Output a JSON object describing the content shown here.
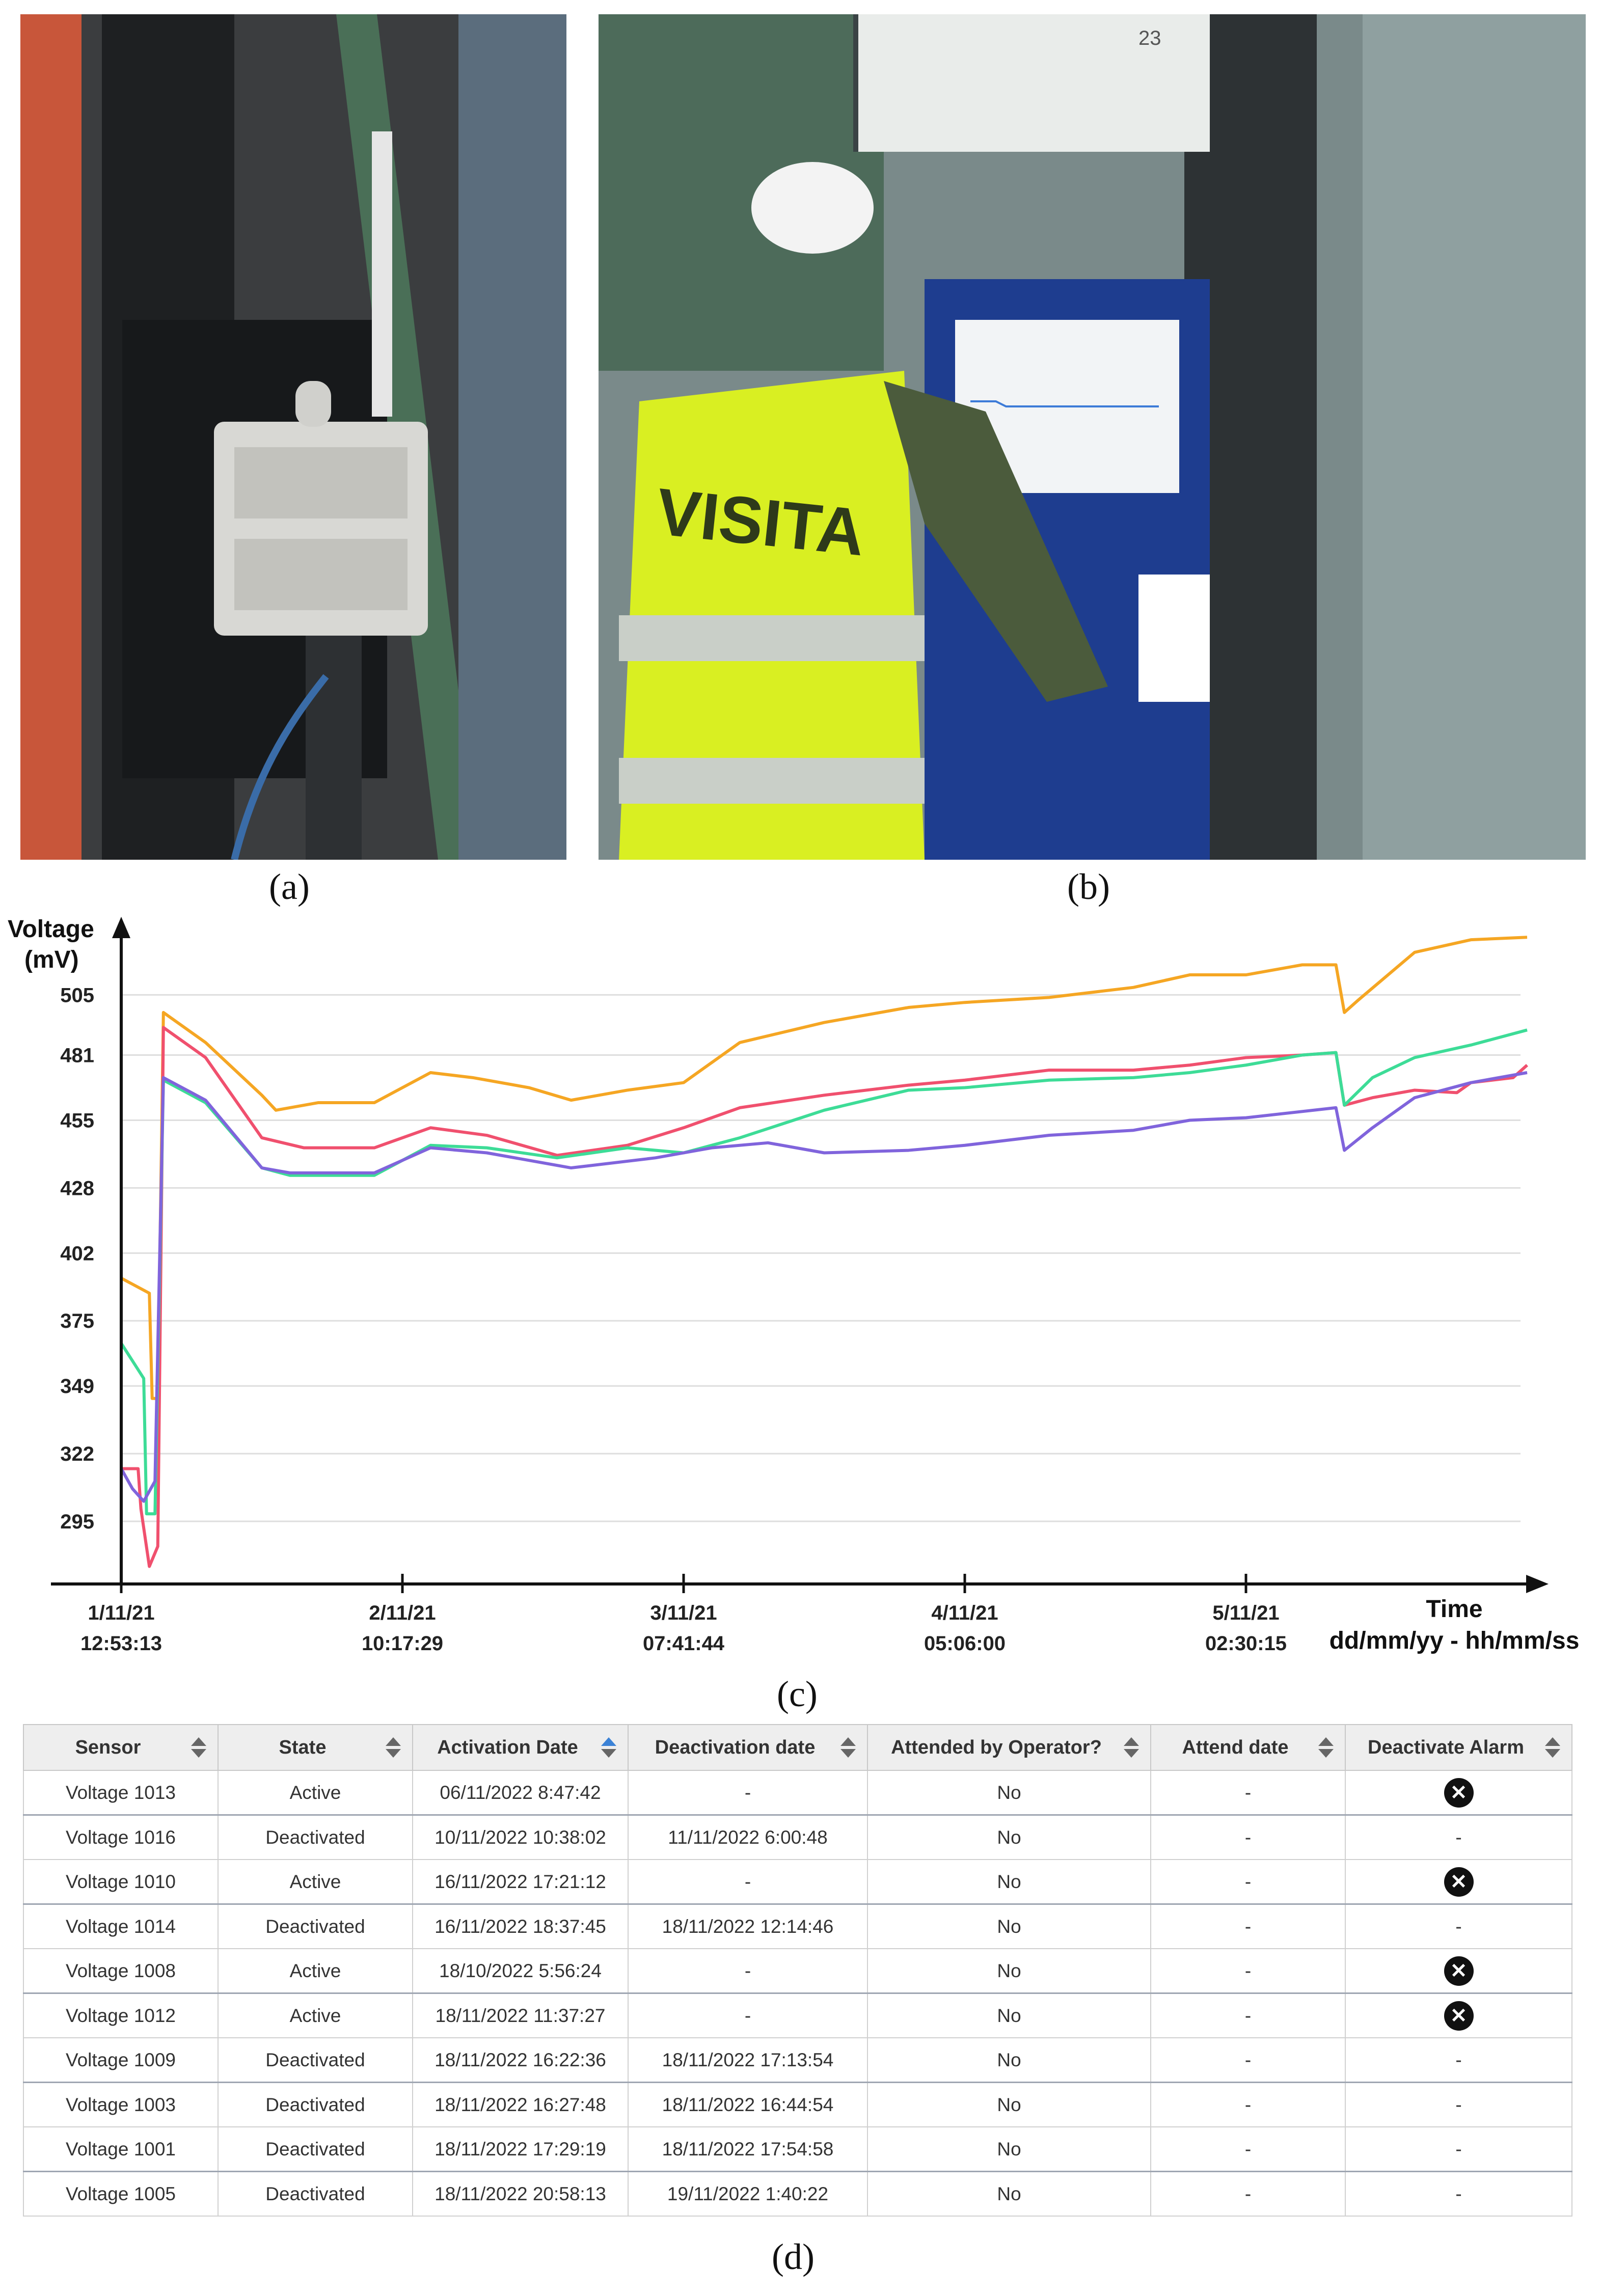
{
  "panels": {
    "a": "(a)",
    "b": "(b)",
    "c": "(c)",
    "d": "(d)"
  },
  "photo_b": {
    "vest_text": "VISITA",
    "ac_display": "23"
  },
  "chart_data": {
    "type": "line",
    "ylabel_line1": "Voltage",
    "ylabel_line2": "(mV)",
    "xlabel_line1": "Time",
    "xlabel_line2": "dd/mm/yy - hh/mm/ss",
    "yticks": [
      295,
      322,
      349,
      375,
      402,
      428,
      455,
      481,
      505
    ],
    "ylim": [
      270,
      525
    ],
    "xlim": [
      0,
      5.06
    ],
    "xticks": [
      {
        "x": 0,
        "date": "1/11/21",
        "time": "12:53:13"
      },
      {
        "x": 1,
        "date": "2/11/21",
        "time": "10:17:29"
      },
      {
        "x": 2,
        "date": "3/11/21",
        "time": "07:41:44"
      },
      {
        "x": 3,
        "date": "4/11/21",
        "time": "05:06:00"
      },
      {
        "x": 4,
        "date": "5/11/21",
        "time": "02:30:15"
      }
    ],
    "grid": true,
    "series": [
      {
        "color": "#f5a623",
        "points": [
          [
            0.0,
            392
          ],
          [
            0.1,
            386
          ],
          [
            0.11,
            344
          ],
          [
            0.13,
            344
          ],
          [
            0.15,
            498
          ],
          [
            0.3,
            486
          ],
          [
            0.5,
            465
          ],
          [
            0.55,
            459
          ],
          [
            0.7,
            462
          ],
          [
            0.9,
            462
          ],
          [
            1.1,
            474
          ],
          [
            1.25,
            472
          ],
          [
            1.45,
            468
          ],
          [
            1.6,
            463
          ],
          [
            1.8,
            467
          ],
          [
            2.0,
            470
          ],
          [
            2.2,
            486
          ],
          [
            2.5,
            494
          ],
          [
            2.8,
            500
          ],
          [
            3.0,
            502
          ],
          [
            3.3,
            504
          ],
          [
            3.6,
            508
          ],
          [
            3.8,
            513
          ],
          [
            4.0,
            513
          ],
          [
            4.2,
            517
          ],
          [
            4.32,
            517
          ],
          [
            4.35,
            498
          ],
          [
            4.4,
            503
          ],
          [
            4.6,
            522
          ],
          [
            4.8,
            527
          ],
          [
            5.0,
            528
          ]
        ]
      },
      {
        "color": "#f0506e",
        "points": [
          [
            0.0,
            316
          ],
          [
            0.06,
            316
          ],
          [
            0.07,
            300
          ],
          [
            0.1,
            277
          ],
          [
            0.13,
            285
          ],
          [
            0.15,
            492
          ],
          [
            0.3,
            480
          ],
          [
            0.5,
            448
          ],
          [
            0.65,
            444
          ],
          [
            0.9,
            444
          ],
          [
            1.1,
            452
          ],
          [
            1.3,
            449
          ],
          [
            1.55,
            441
          ],
          [
            1.8,
            445
          ],
          [
            2.0,
            452
          ],
          [
            2.2,
            460
          ],
          [
            2.5,
            465
          ],
          [
            2.8,
            469
          ],
          [
            3.0,
            471
          ],
          [
            3.3,
            475
          ],
          [
            3.6,
            475
          ],
          [
            3.8,
            477
          ],
          [
            4.0,
            480
          ],
          [
            4.2,
            481
          ],
          [
            4.32,
            482
          ],
          [
            4.35,
            461
          ],
          [
            4.45,
            464
          ],
          [
            4.6,
            467
          ],
          [
            4.75,
            466
          ],
          [
            4.8,
            470
          ],
          [
            4.95,
            472
          ],
          [
            5.0,
            477
          ]
        ]
      },
      {
        "color": "#3ddc97",
        "points": [
          [
            0.0,
            366
          ],
          [
            0.08,
            352
          ],
          [
            0.09,
            298
          ],
          [
            0.12,
            298
          ],
          [
            0.15,
            471
          ],
          [
            0.3,
            462
          ],
          [
            0.5,
            436
          ],
          [
            0.6,
            433
          ],
          [
            0.9,
            433
          ],
          [
            1.1,
            445
          ],
          [
            1.3,
            444
          ],
          [
            1.55,
            440
          ],
          [
            1.8,
            444
          ],
          [
            2.0,
            442
          ],
          [
            2.2,
            448
          ],
          [
            2.5,
            459
          ],
          [
            2.8,
            467
          ],
          [
            3.0,
            468
          ],
          [
            3.3,
            471
          ],
          [
            3.6,
            472
          ],
          [
            3.8,
            474
          ],
          [
            4.0,
            477
          ],
          [
            4.2,
            481
          ],
          [
            4.32,
            482
          ],
          [
            4.35,
            461
          ],
          [
            4.45,
            472
          ],
          [
            4.6,
            480
          ],
          [
            4.8,
            485
          ],
          [
            5.0,
            491
          ]
        ]
      },
      {
        "color": "#8064dc",
        "points": [
          [
            0.0,
            316
          ],
          [
            0.04,
            308
          ],
          [
            0.08,
            303
          ],
          [
            0.12,
            311
          ],
          [
            0.15,
            472
          ],
          [
            0.3,
            463
          ],
          [
            0.5,
            436
          ],
          [
            0.6,
            434
          ],
          [
            0.9,
            434
          ],
          [
            1.1,
            444
          ],
          [
            1.3,
            442
          ],
          [
            1.6,
            436
          ],
          [
            1.9,
            440
          ],
          [
            2.1,
            444
          ],
          [
            2.3,
            446
          ],
          [
            2.5,
            442
          ],
          [
            2.8,
            443
          ],
          [
            3.0,
            445
          ],
          [
            3.3,
            449
          ],
          [
            3.6,
            451
          ],
          [
            3.8,
            455
          ],
          [
            4.0,
            456
          ],
          [
            4.32,
            460
          ],
          [
            4.35,
            443
          ],
          [
            4.45,
            452
          ],
          [
            4.6,
            464
          ],
          [
            4.8,
            470
          ],
          [
            5.0,
            474
          ]
        ]
      }
    ]
  },
  "table": {
    "headers": [
      "Sensor",
      "State",
      "Activation Date",
      "Deactivation date",
      "Attended by Operator?",
      "Attend date",
      "Deactivate Alarm"
    ],
    "rows": [
      {
        "sensor": "Voltage 1013",
        "state": "Active",
        "activation": "06/11/2022 8:47:42",
        "deactivation": "-",
        "attended": "No",
        "attend_date": "-",
        "alarm": "x"
      },
      {
        "sensor": "Voltage 1016",
        "state": "Deactivated",
        "activation": "10/11/2022 10:38:02",
        "deactivation": "11/11/2022 6:00:48",
        "attended": "No",
        "attend_date": "-",
        "alarm": "-"
      },
      {
        "sensor": "Voltage 1010",
        "state": "Active",
        "activation": "16/11/2022 17:21:12",
        "deactivation": "-",
        "attended": "No",
        "attend_date": "-",
        "alarm": "x"
      },
      {
        "sensor": "Voltage 1014",
        "state": "Deactivated",
        "activation": "16/11/2022 18:37:45",
        "deactivation": "18/11/2022 12:14:46",
        "attended": "No",
        "attend_date": "-",
        "alarm": "-"
      },
      {
        "sensor": "Voltage 1008",
        "state": "Active",
        "activation": "18/10/2022 5:56:24",
        "deactivation": "-",
        "attended": "No",
        "attend_date": "-",
        "alarm": "x"
      },
      {
        "sensor": "Voltage 1012",
        "state": "Active",
        "activation": "18/11/2022 11:37:27",
        "deactivation": "-",
        "attended": "No",
        "attend_date": "-",
        "alarm": "x"
      },
      {
        "sensor": "Voltage 1009",
        "state": "Deactivated",
        "activation": "18/11/2022 16:22:36",
        "deactivation": "18/11/2022 17:13:54",
        "attended": "No",
        "attend_date": "-",
        "alarm": "-"
      },
      {
        "sensor": "Voltage 1003",
        "state": "Deactivated",
        "activation": "18/11/2022 16:27:48",
        "deactivation": "18/11/2022 16:44:54",
        "attended": "No",
        "attend_date": "-",
        "alarm": "-"
      },
      {
        "sensor": "Voltage 1001",
        "state": "Deactivated",
        "activation": "18/11/2022 17:29:19",
        "deactivation": "18/11/2022 17:54:58",
        "attended": "No",
        "attend_date": "-",
        "alarm": "-"
      },
      {
        "sensor": "Voltage 1005",
        "state": "Deactivated",
        "activation": "18/11/2022 20:58:13",
        "deactivation": "19/11/2022 1:40:22",
        "attended": "No",
        "attend_date": "-",
        "alarm": "-"
      }
    ]
  }
}
